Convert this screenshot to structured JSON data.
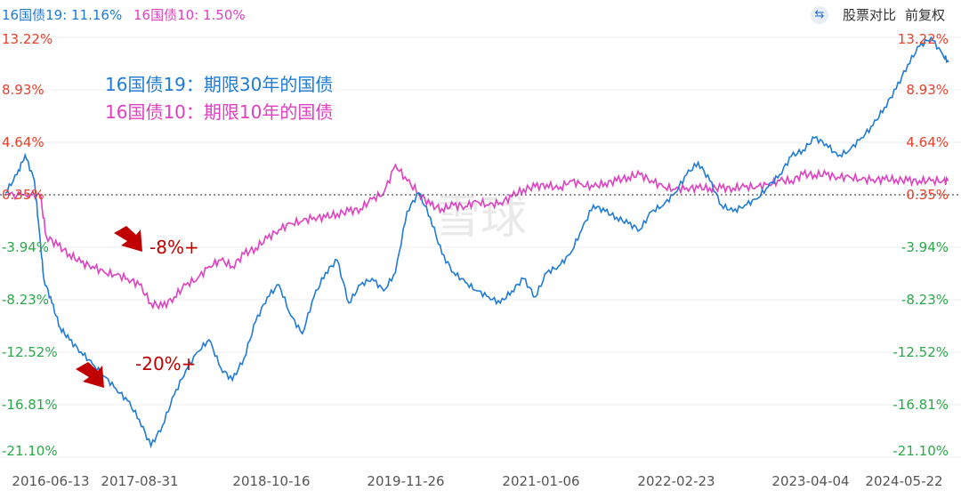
{
  "legend": {
    "s1_label": "16国债19: 11.16%",
    "s2_label": "16国债10: 1.50%"
  },
  "toolbar": {
    "compare_label": "股票对比",
    "adjust_label": "前复权"
  },
  "notes": {
    "line1": "16国债19：期限30年的国债",
    "line2": "16国债10：期限10年的国债",
    "pct1": "-8%+",
    "pct2": "-20%+"
  },
  "watermark": "雪球",
  "colors": {
    "s1": "#1f7bd6",
    "s2": "#e040c0",
    "pos": "#e8412c",
    "neg": "#2aa84a",
    "annot": "#c00000",
    "grid": "#eeeeee"
  },
  "chart_data": {
    "type": "line",
    "title": "",
    "x_ticks": [
      "2016-06-13",
      "2017-08-31",
      "2018-10-16",
      "2019-11-26",
      "2021-01-06",
      "2022-02-23",
      "2023-04-04",
      "2024-05-22"
    ],
    "y_ticks_left": [
      "13.22%",
      "8.93%",
      "4.64%",
      "0.35%",
      "-3.94%",
      "-8.23%",
      "-12.52%",
      "-16.81%",
      "-21.10%"
    ],
    "y_ticks_right": [
      "13.22%",
      "8.93%",
      "4.64%",
      "0.35%",
      "-3.94%",
      "-8.23%",
      "-12.52%",
      "-16.81%",
      "-21.10%"
    ],
    "ylim": [
      -21.1,
      13.22
    ],
    "xlim": [
      2016.45,
      2024.55
    ],
    "baseline": 0.35,
    "series": [
      {
        "name": "16国债19",
        "last": "11.16%",
        "x": [
          2016.45,
          2016.55,
          2016.62,
          2016.7,
          2016.74,
          2016.78,
          2016.85,
          2016.92,
          2017.0,
          2017.1,
          2017.2,
          2017.3,
          2017.4,
          2017.5,
          2017.6,
          2017.7,
          2017.8,
          2017.9,
          2018.0,
          2018.1,
          2018.2,
          2018.3,
          2018.4,
          2018.5,
          2018.6,
          2018.7,
          2018.8,
          2018.9,
          2019.0,
          2019.1,
          2019.2,
          2019.3,
          2019.4,
          2019.5,
          2019.6,
          2019.7,
          2019.8,
          2019.9,
          2020.0,
          2020.1,
          2020.2,
          2020.3,
          2020.4,
          2020.5,
          2020.6,
          2020.7,
          2020.8,
          2020.9,
          2021.0,
          2021.1,
          2021.2,
          2021.3,
          2021.4,
          2021.5,
          2021.6,
          2021.7,
          2021.8,
          2021.9,
          2022.0,
          2022.1,
          2022.2,
          2022.3,
          2022.4,
          2022.5,
          2022.6,
          2022.7,
          2022.8,
          2022.9,
          2023.0,
          2023.1,
          2023.2,
          2023.3,
          2023.4,
          2023.5,
          2023.6,
          2023.7,
          2023.8,
          2023.9,
          2024.0,
          2024.1,
          2024.2,
          2024.3,
          2024.4,
          2024.5,
          2024.55
        ],
        "values": [
          0.5,
          2.0,
          3.6,
          1.5,
          -2.5,
          -6.5,
          -8.5,
          -10.5,
          -11.5,
          -12.5,
          -13.5,
          -14.5,
          -15.5,
          -16.5,
          -18.0,
          -20.2,
          -18.5,
          -16.0,
          -14.0,
          -12.5,
          -11.5,
          -13.8,
          -14.8,
          -13.0,
          -10.0,
          -8.0,
          -7.0,
          -9.5,
          -11.0,
          -8.0,
          -6.0,
          -5.0,
          -8.5,
          -7.0,
          -6.5,
          -7.5,
          -6.0,
          -1.0,
          0.5,
          -1.5,
          -4.5,
          -6.0,
          -6.8,
          -7.5,
          -8.0,
          -8.5,
          -7.5,
          -6.5,
          -8.0,
          -6.0,
          -5.5,
          -4.5,
          -2.5,
          -0.5,
          -1.0,
          -1.5,
          -2.0,
          -2.5,
          -1.0,
          -0.5,
          0.5,
          2.0,
          3.0,
          1.5,
          -0.5,
          -1.0,
          -0.5,
          0.0,
          1.0,
          2.0,
          3.5,
          4.0,
          5.0,
          4.5,
          3.5,
          4.0,
          5.0,
          6.0,
          7.5,
          9.0,
          11.0,
          12.5,
          13.2,
          11.8,
          11.2
        ]
      },
      {
        "name": "16国债10",
        "last": "1.50%",
        "x": [
          2016.45,
          2016.62,
          2016.75,
          2016.8,
          2016.9,
          2017.0,
          2017.1,
          2017.2,
          2017.3,
          2017.4,
          2017.5,
          2017.6,
          2017.7,
          2017.8,
          2017.9,
          2018.0,
          2018.1,
          2018.2,
          2018.3,
          2018.4,
          2018.5,
          2018.6,
          2018.7,
          2018.8,
          2018.9,
          2019.0,
          2019.1,
          2019.2,
          2019.3,
          2019.4,
          2019.5,
          2019.6,
          2019.7,
          2019.8,
          2019.9,
          2020.0,
          2020.1,
          2020.2,
          2020.3,
          2020.4,
          2020.5,
          2020.6,
          2020.7,
          2020.8,
          2020.9,
          2021.0,
          2021.1,
          2021.2,
          2021.3,
          2021.4,
          2021.5,
          2021.6,
          2021.7,
          2021.8,
          2021.9,
          2022.0,
          2022.1,
          2022.2,
          2022.3,
          2022.4,
          2022.5,
          2022.6,
          2022.7,
          2022.8,
          2022.9,
          2023.0,
          2023.1,
          2023.2,
          2023.3,
          2023.4,
          2023.5,
          2023.6,
          2023.7,
          2023.8,
          2023.9,
          2024.0,
          2024.1,
          2024.2,
          2024.3,
          2024.4,
          2024.5,
          2024.55
        ],
        "values": [
          0.35,
          0.35,
          0.35,
          -3.0,
          -3.8,
          -4.5,
          -5.2,
          -5.5,
          -6.0,
          -6.2,
          -6.5,
          -7.0,
          -8.5,
          -8.8,
          -8.0,
          -7.0,
          -6.5,
          -5.5,
          -5.0,
          -5.5,
          -4.5,
          -4.0,
          -3.2,
          -2.5,
          -2.0,
          -1.8,
          -1.5,
          -1.5,
          -1.2,
          -1.0,
          -0.8,
          0.0,
          0.5,
          2.8,
          1.5,
          0.5,
          -0.5,
          -0.8,
          -0.5,
          -0.6,
          -0.2,
          -0.5,
          -0.3,
          0.2,
          0.8,
          1.0,
          1.2,
          0.8,
          1.5,
          1.2,
          1.0,
          1.3,
          1.5,
          1.8,
          2.0,
          1.5,
          1.0,
          0.8,
          0.9,
          0.9,
          0.9,
          0.9,
          0.9,
          1.0,
          1.0,
          1.2,
          1.5,
          1.5,
          2.0,
          2.0,
          2.0,
          1.8,
          1.8,
          1.6,
          1.6,
          1.6,
          1.6,
          1.5,
          1.5,
          1.5,
          1.5,
          1.5
        ]
      }
    ]
  }
}
